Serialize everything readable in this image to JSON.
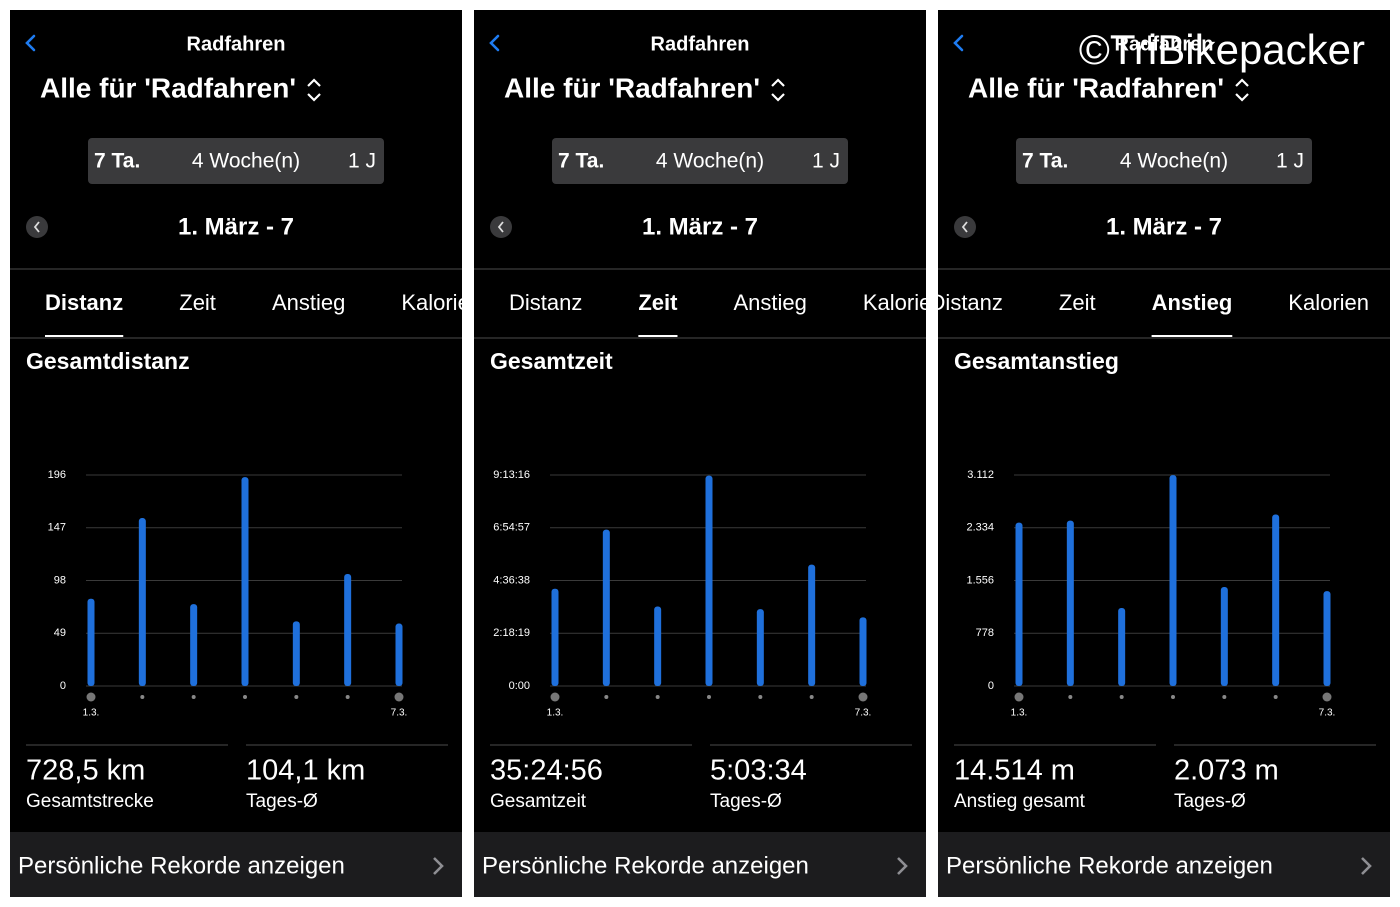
{
  "watermark": "©TriBikepacker",
  "panels": [
    {
      "app_title": "Radfahren",
      "filter": "Alle für 'Radfahren'",
      "ranges": [
        "7 Ta.",
        "4 Woche(n)",
        "1 J"
      ],
      "date": "1. März - 7",
      "tabs": [
        "Distanz",
        "Zeit",
        "Anstieg",
        "Kalorien"
      ],
      "active_tab": 0,
      "stats": [
        {
          "value": "728,5 km",
          "label": "Gesamtstrecke"
        },
        {
          "value": "104,1 km",
          "label": "Tages-Ø"
        }
      ],
      "footer": "Persönliche Rekorde anzeigen"
    },
    {
      "app_title": "Radfahren",
      "filter": "Alle für 'Radfahren'",
      "ranges": [
        "7 Ta.",
        "4 Woche(n)",
        "1 J"
      ],
      "date": "1. März - 7",
      "tabs": [
        "Distanz",
        "Zeit",
        "Anstieg",
        "Kalorien"
      ],
      "active_tab": 1,
      "stats": [
        {
          "value": "35:24:56",
          "label": "Gesamtzeit"
        },
        {
          "value": "5:03:34",
          "label": "Tages-Ø"
        }
      ],
      "footer": "Persönliche Rekorde anzeigen"
    },
    {
      "app_title": "Radfahren",
      "filter": "Alle für 'Radfahren'",
      "ranges": [
        "7 Ta.",
        "4 Woche(n)",
        "1 J"
      ],
      "date": "1. März - 7",
      "tabs": [
        "Distanz",
        "Zeit",
        "Anstieg",
        "Kalorien"
      ],
      "active_tab": 2,
      "stats": [
        {
          "value": "14.514 m",
          "label": "Anstieg gesamt"
        },
        {
          "value": "2.073 m",
          "label": "Tages-Ø"
        }
      ],
      "footer": "Persönliche Rekorde anzeigen"
    }
  ],
  "chart_data": [
    {
      "type": "bar",
      "title": "Gesamtdistanz",
      "categories": [
        "1.3.",
        null,
        null,
        null,
        null,
        null,
        "7.3."
      ],
      "values": [
        81,
        156,
        76,
        194,
        60,
        104,
        58
      ],
      "color": "#1f70dc",
      "ylim": [
        0,
        196
      ],
      "yticks": [
        0,
        49,
        98,
        147,
        196
      ],
      "grid": true
    },
    {
      "type": "bar",
      "title": "Gesamtzeit",
      "categories": [
        "1.3.",
        null,
        null,
        null,
        null,
        null,
        "7.3."
      ],
      "values": [
        15300,
        24600,
        12500,
        33100,
        12100,
        19100,
        10800
      ],
      "color": "#1f70dc",
      "ylim": [
        0,
        33196
      ],
      "yticks": [
        {
          "value": 0,
          "label": "0:00"
        },
        {
          "value": 8299,
          "label": "2:18:19"
        },
        {
          "value": 16598,
          "label": "4:36:38"
        },
        {
          "value": 24897,
          "label": "6:54:57"
        },
        {
          "value": 33196,
          "label": "9:13:16"
        }
      ],
      "grid": true
    },
    {
      "type": "bar",
      "title": "Gesamtanstieg",
      "categories": [
        "1.3.",
        null,
        null,
        null,
        null,
        null,
        "7.3."
      ],
      "values": [
        2410,
        2440,
        1150,
        3110,
        1460,
        2530,
        1400
      ],
      "color": "#1f70dc",
      "ylim": [
        0,
        3112
      ],
      "yticks": [
        0,
        778,
        {
          "value": 1556,
          "label": "1.556"
        },
        {
          "value": 2334,
          "label": "2.334"
        },
        {
          "value": 3112,
          "label": "3.112"
        }
      ],
      "grid": true
    }
  ]
}
